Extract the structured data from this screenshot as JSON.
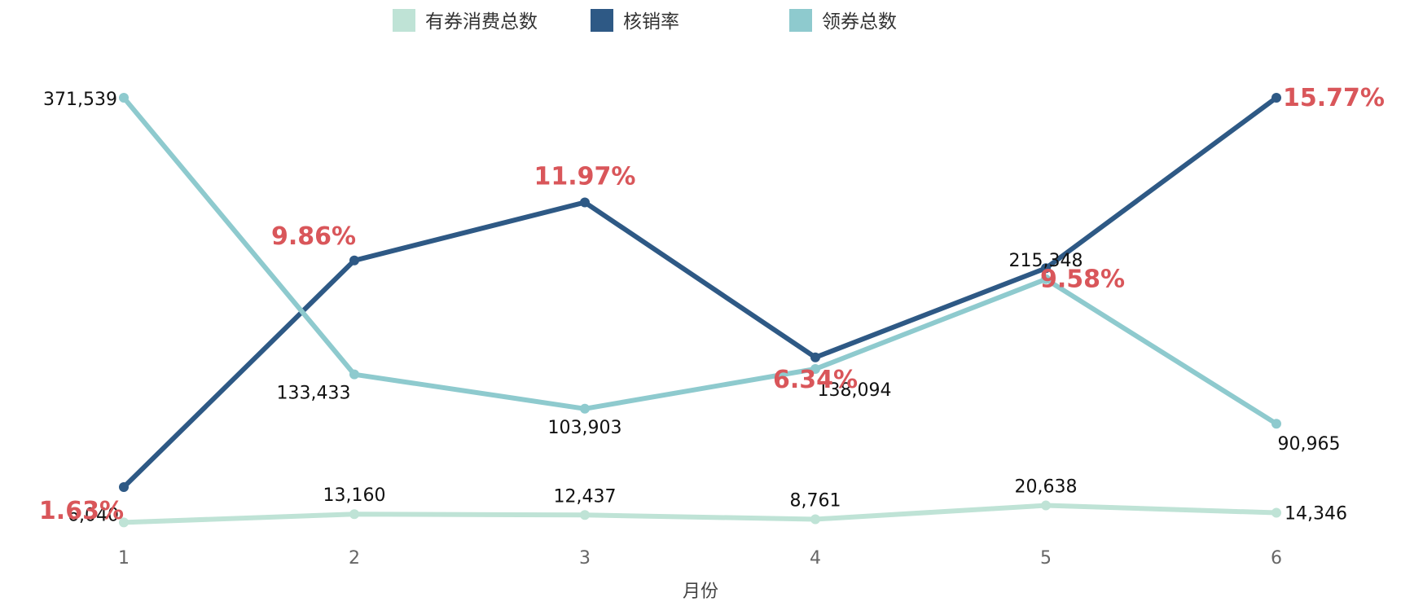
{
  "chart_data": {
    "type": "line",
    "xlabel": "月份",
    "categories": [
      "1",
      "2",
      "3",
      "4",
      "5",
      "6"
    ],
    "legend_position": "top-center",
    "grid": false,
    "y_axis_visible": false,
    "series": [
      {
        "name": "有券消费总数",
        "color": "#bfe3d6",
        "axis": "left",
        "values": [
          6040,
          13160,
          12437,
          8761,
          20638,
          14346
        ],
        "labels": [
          "6,040",
          "13,160",
          "12,437",
          "8,761",
          "20,638",
          "14,346"
        ]
      },
      {
        "name": "核销率",
        "color": "#2e5985",
        "axis": "right",
        "values": [
          1.63,
          9.86,
          11.97,
          6.34,
          9.58,
          15.77
        ],
        "labels": [
          "1.63%",
          "9.86%",
          "11.97%",
          "6.34%",
          "9.58%",
          "15.77%"
        ],
        "label_color": "#d9565a"
      },
      {
        "name": "领券总数",
        "color": "#8ecace",
        "axis": "left",
        "values": [
          371539,
          133433,
          103903,
          138094,
          215348,
          90965
        ],
        "labels": [
          "371,539",
          "133,433",
          "103,903",
          "138,094",
          "215,348",
          "90,965"
        ]
      }
    ]
  }
}
